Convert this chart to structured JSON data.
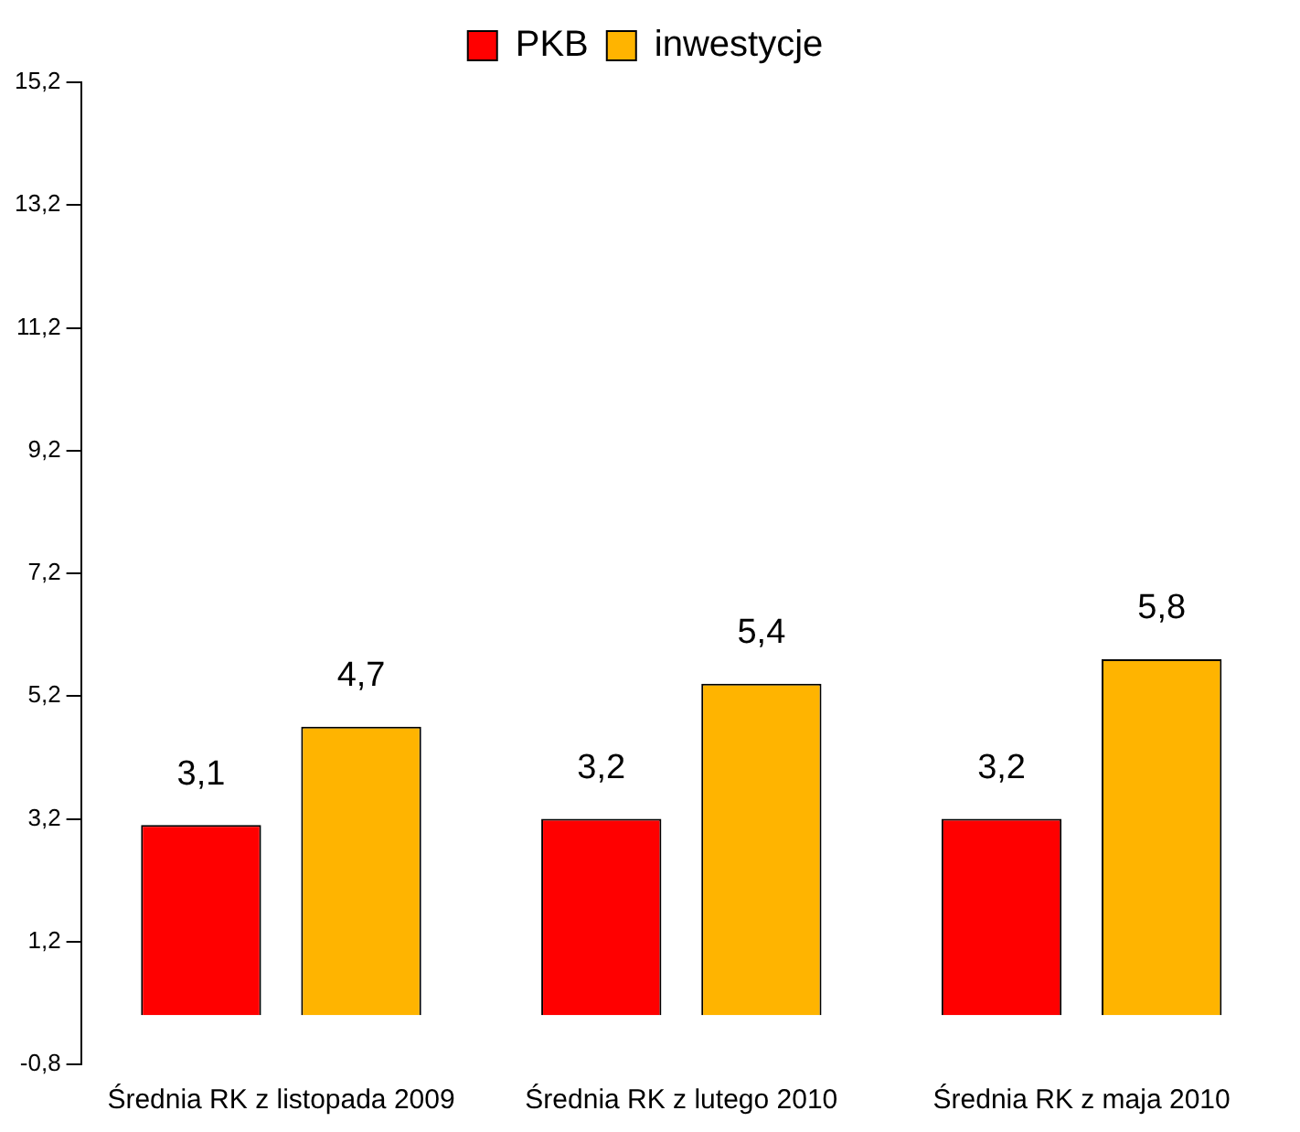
{
  "chart_data": {
    "type": "bar",
    "categories": [
      "Średnia RK z listopada 2009",
      "Średnia RK z lutego 2010",
      "Średnia RK z maja 2010"
    ],
    "series": [
      {
        "name": "PKB",
        "color": "#ff0000",
        "values": [
          3.1,
          3.2,
          3.2
        ],
        "value_labels": [
          "3,1",
          "3,2",
          "3,2"
        ]
      },
      {
        "name": "inwestycje",
        "color": "#ffb400",
        "values": [
          4.7,
          5.4,
          5.8
        ],
        "value_labels": [
          "4,7",
          "5,4",
          "5,8"
        ]
      }
    ],
    "ylim": [
      -0.8,
      15.2
    ],
    "yticks": [
      {
        "value": -0.8,
        "label": "-0,8"
      },
      {
        "value": 1.2,
        "label": "1,2"
      },
      {
        "value": 3.2,
        "label": "3,2"
      },
      {
        "value": 5.2,
        "label": "5,2"
      },
      {
        "value": 7.2,
        "label": "7,2"
      },
      {
        "value": 9.2,
        "label": "9,2"
      },
      {
        "value": 11.2,
        "label": "11,2"
      },
      {
        "value": 13.2,
        "label": "13,2"
      },
      {
        "value": 15.2,
        "label": "15,2"
      }
    ],
    "grid": false,
    "legend": "top"
  }
}
